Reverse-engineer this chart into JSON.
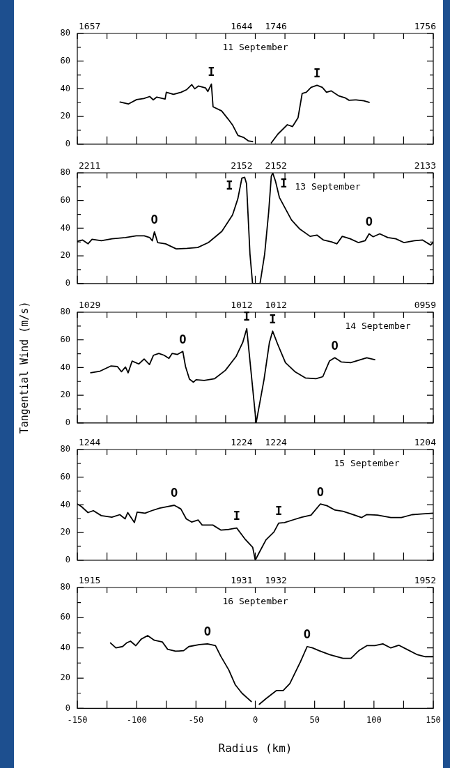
{
  "chart_data": [
    {
      "type": "line",
      "title": "11 September",
      "xlim": [
        -150,
        150
      ],
      "xticks": [
        {
          "value": -150,
          "label": null
        },
        {
          "value": -125,
          "label": null
        },
        {
          "value": -100,
          "label": null
        },
        {
          "value": -75,
          "label": null
        },
        {
          "value": -50,
          "label": null
        },
        {
          "value": -25,
          "label": null
        },
        {
          "value": 0,
          "label": null
        },
        {
          "value": 25,
          "label": null
        },
        {
          "value": 50,
          "label": null
        },
        {
          "value": 75,
          "label": null
        },
        {
          "value": 100,
          "label": null
        },
        {
          "value": 125,
          "label": null
        },
        {
          "value": 150,
          "label": null
        }
      ],
      "ylim": [
        0,
        80
      ],
      "yticks": [
        0,
        {
          "value": 10,
          "label": null
        },
        20,
        {
          "value": 30,
          "label": null
        },
        40,
        {
          "value": 50,
          "label": null
        },
        60,
        {
          "value": 70,
          "label": null
        },
        80
      ],
      "tick_labels": "y",
      "x": [
        -114,
        -107,
        -100,
        -94,
        -89,
        -86,
        -83,
        -76,
        -75,
        -69,
        -62.5,
        -58,
        -53.5,
        -51,
        -48,
        -42,
        -40,
        -37,
        -35.6,
        -28.4,
        -22.8,
        -19,
        -14.6,
        -10,
        -6,
        -2.3,
        5,
        13.5,
        19,
        27,
        31.4,
        36,
        39.5,
        43,
        47,
        52,
        56.5,
        60,
        64,
        70,
        75.6,
        79,
        85,
        91.5,
        96
      ],
      "series": [
        {
          "color": "#000000",
          "values": [
            30.4,
            29,
            32.2,
            33,
            34.4,
            32,
            34,
            32.6,
            37.5,
            36,
            37.5,
            39.3,
            43,
            40,
            42,
            40.7,
            38,
            43.4,
            27,
            24,
            18,
            13.6,
            6.3,
            4.9,
            2.4,
            1.8,
            null,
            0.9,
            7.2,
            14,
            12.7,
            19,
            36.6,
            37.5,
            41,
            42.5,
            41,
            37.5,
            38.5,
            35,
            33.5,
            31.7,
            32,
            31.3,
            30.2
          ]
        }
      ],
      "annotations": [
        "1657",
        "1644",
        "1746",
        "1756",
        {
          "text": "I",
          "x": -37,
          "y": 43.4
        },
        {
          "text": "I",
          "x": 52,
          "y": 42.5
        }
      ]
    },
    {
      "type": "line",
      "title": "13 September",
      "xlim": [
        -150,
        150
      ],
      "xticks": [
        {
          "value": -150,
          "label": null
        },
        {
          "value": -125,
          "label": null
        },
        {
          "value": -100,
          "label": null
        },
        {
          "value": -75,
          "label": null
        },
        {
          "value": -50,
          "label": null
        },
        {
          "value": -25,
          "label": null
        },
        {
          "value": 0,
          "label": null
        },
        {
          "value": 25,
          "label": null
        },
        {
          "value": 50,
          "label": null
        },
        {
          "value": 75,
          "label": null
        },
        {
          "value": 100,
          "label": null
        },
        {
          "value": 125,
          "label": null
        },
        {
          "value": 150,
          "label": null
        }
      ],
      "ylim": [
        0,
        80
      ],
      "yticks": [
        0,
        {
          "value": 10,
          "label": null
        },
        20,
        {
          "value": 30,
          "label": null
        },
        40,
        {
          "value": 50,
          "label": null
        },
        60,
        {
          "value": 70,
          "label": null
        },
        80
      ],
      "tick_labels": "y",
      "x": [
        -150,
        -145.5,
        -141,
        -137.6,
        -129.7,
        -120.7,
        -109.4,
        -100.4,
        -93.6,
        -89,
        -86.8,
        -85,
        -82.3,
        -75.6,
        -66.6,
        -57.5,
        -48.5,
        -39.5,
        -28.2,
        -19.2,
        -14.7,
        -11.3,
        -9,
        -7.4,
        -4.5,
        -2.3,
        4,
        7.9,
        11.3,
        13.5,
        14.7,
        17,
        20.3,
        24.8,
        30.5,
        37.2,
        46.2,
        51.9,
        57.5,
        64.3,
        68.8,
        73.3,
        80,
        86.8,
        92.5,
        95.9,
        99.3,
        104.9,
        111.7,
        118.4,
        125.2,
        134.2,
        141,
        147.8,
        150
      ],
      "series": [
        {
          "color": "#000000",
          "values": [
            30.5,
            31.4,
            28.7,
            32,
            30.9,
            32.3,
            33.2,
            34.5,
            34.5,
            33.2,
            30.9,
            37.4,
            29.6,
            28.7,
            25,
            25.4,
            26,
            29.6,
            37.7,
            49.5,
            61.3,
            76.2,
            76.8,
            72.2,
            21.4,
            0,
            0,
            21.4,
            52,
            77.7,
            79.8,
            74,
            62.2,
            55,
            45.9,
            39.6,
            34.1,
            35,
            31.4,
            30.1,
            28.7,
            34.1,
            32.3,
            29.6,
            30.9,
            35.9,
            33.8,
            35.9,
            33.2,
            32.3,
            29.6,
            30.9,
            31.4,
            27.8,
            30
          ]
        }
      ],
      "annotations": [
        "2211",
        "2152",
        "2152",
        "2133",
        {
          "text": "O",
          "x": -85,
          "y": 37.4
        },
        {
          "text": "O",
          "x": 95.9,
          "y": 35.9
        },
        {
          "text": "I",
          "x": -11.3,
          "y": 76.2
        },
        {
          "text": "I",
          "x": 13.5,
          "y": 77.7
        }
      ]
    },
    {
      "type": "line",
      "title": "14 September",
      "ylabel": "Tangential Wind (m/s)",
      "xlim": [
        -150,
        150
      ],
      "xticks": [
        {
          "value": -150,
          "label": null
        },
        {
          "value": -125,
          "label": null
        },
        {
          "value": -100,
          "label": null
        },
        {
          "value": -75,
          "label": null
        },
        {
          "value": -50,
          "label": null
        },
        {
          "value": -25,
          "label": null
        },
        {
          "value": 0,
          "label": null
        },
        {
          "value": 25,
          "label": null
        },
        {
          "value": 50,
          "label": null
        },
        {
          "value": 75,
          "label": null
        },
        {
          "value": 100,
          "label": null
        },
        {
          "value": 125,
          "label": null
        },
        {
          "value": 150,
          "label": null
        }
      ],
      "ylim": [
        0,
        80
      ],
      "yticks": [
        0,
        {
          "value": 10,
          "label": null
        },
        20,
        {
          "value": 30,
          "label": null
        },
        40,
        {
          "value": 50,
          "label": null
        },
        60,
        {
          "value": 70,
          "label": null
        },
        80
      ],
      "tick_labels": "y",
      "x": [
        -138.7,
        -130.8,
        -121.8,
        -116.2,
        -112.8,
        -109.4,
        -107.2,
        -103.8,
        -98.2,
        -93.7,
        -89.2,
        -85.8,
        -81.3,
        -76.9,
        -72.8,
        -70.1,
        -65.6,
        -61.1,
        -58.8,
        -55.5,
        -52.1,
        -49.9,
        -43.1,
        -34.2,
        -25.2,
        -16.2,
        -10.6,
        -7.2,
        0.7,
        7.4,
        11.9,
        14.6,
        18.7,
        25.4,
        33.3,
        42.2,
        51.2,
        56.9,
        62.5,
        67,
        72.6,
        80.4,
        87.2,
        93.9,
        100.7
      ],
      "series": [
        {
          "color": "#000000",
          "values": [
            36.2,
            37.4,
            41.1,
            40.7,
            37,
            40.4,
            36.2,
            44.7,
            42.6,
            46.2,
            42.2,
            48.9,
            50.2,
            48.9,
            46.6,
            50.2,
            49.5,
            51.7,
            40.7,
            31.6,
            29.4,
            31.2,
            30.7,
            32,
            38,
            48,
            58.1,
            68.1,
            0,
            31.6,
            58.1,
            66.3,
            57.2,
            43.5,
            37.1,
            32.5,
            32,
            33.4,
            44.7,
            47.1,
            44,
            43.5,
            45.3,
            47.1,
            45.7
          ]
        }
      ],
      "annotations": [
        "1029",
        "1012",
        "1012",
        "0959",
        {
          "text": "O",
          "x": -61.1,
          "y": 51.7
        },
        {
          "text": "O",
          "x": 67,
          "y": 47.1
        },
        {
          "text": "I",
          "x": -7.2,
          "y": 68.1
        },
        {
          "text": "I",
          "x": 14.6,
          "y": 66.3
        }
      ]
    },
    {
      "type": "line",
      "title": "15 September",
      "xlim": [
        -150,
        150
      ],
      "xticks": [
        {
          "value": -150,
          "label": null
        },
        {
          "value": -125,
          "label": null
        },
        {
          "value": -100,
          "label": null
        },
        {
          "value": -75,
          "label": null
        },
        {
          "value": -50,
          "label": null
        },
        {
          "value": -25,
          "label": null
        },
        {
          "value": 0,
          "label": null
        },
        {
          "value": 25,
          "label": null
        },
        {
          "value": 50,
          "label": null
        },
        {
          "value": 75,
          "label": null
        },
        {
          "value": 100,
          "label": null
        },
        {
          "value": 125,
          "label": null
        },
        {
          "value": 150,
          "label": null
        }
      ],
      "ylim": [
        0,
        80
      ],
      "yticks": [
        0,
        {
          "value": 10,
          "label": null
        },
        20,
        {
          "value": 30,
          "label": null
        },
        40,
        {
          "value": 50,
          "label": null
        },
        60,
        {
          "value": 70,
          "label": null
        },
        80
      ],
      "tick_labels": "y",
      "x": [
        -150,
        -146.6,
        -141,
        -136.5,
        -129.8,
        -120.9,
        -114.2,
        -109.7,
        -107.5,
        -101.9,
        -99.6,
        -92.9,
        -87.3,
        -80.6,
        -73.9,
        -68.3,
        -62.7,
        -58.2,
        -53.7,
        -48.1,
        -44.8,
        -35.8,
        -29.1,
        -22.4,
        -15.7,
        -9,
        -2.2,
        0,
        3.4,
        9,
        15.7,
        19.7,
        24.6,
        31.3,
        39.2,
        47,
        54.8,
        60.4,
        67.2,
        73.9,
        80.6,
        89.5,
        94,
        103,
        114.2,
        123.1,
        132.1,
        141,
        150
      ],
      "series": [
        {
          "color": "#000000",
          "values": [
            40.6,
            38.8,
            34.4,
            35.8,
            32.2,
            31.1,
            32.9,
            29.9,
            34.4,
            27.2,
            34.7,
            34,
            35.8,
            37.6,
            38.8,
            39.7,
            37,
            29.9,
            27.6,
            29,
            25.4,
            25.4,
            21.8,
            22.2,
            23.3,
            15.6,
            9.3,
            0,
            5.7,
            14.7,
            20.4,
            26.8,
            27.2,
            29,
            31.1,
            32.6,
            40.6,
            39.4,
            36.2,
            35.3,
            33.5,
            30.8,
            33,
            32.6,
            30.8,
            30.8,
            32.9,
            33.5,
            34
          ]
        }
      ],
      "annotations": [
        "1244",
        "1224",
        "1224",
        "1204",
        {
          "text": "O",
          "x": -68.3,
          "y": 39.7
        },
        {
          "text": "O",
          "x": 54.8,
          "y": 40.6
        },
        {
          "text": "I",
          "x": -15.7,
          "y": 23.3
        },
        {
          "text": "I",
          "x": 19.7,
          "y": 26.8
        }
      ]
    },
    {
      "type": "line",
      "title": "16 September",
      "xlabel": "Radius (km)",
      "xlim": [
        -150,
        150
      ],
      "xticks": [
        -150,
        {
          "value": -125,
          "label": null
        },
        -100,
        {
          "value": -75,
          "label": null
        },
        -50,
        {
          "value": -25,
          "label": null
        },
        0,
        {
          "value": 25,
          "label": null
        },
        50,
        {
          "value": 75,
          "label": null
        },
        100,
        {
          "value": 125,
          "label": null
        },
        150
      ],
      "ylim": [
        0,
        80
      ],
      "yticks": [
        0,
        {
          "value": 10,
          "label": null
        },
        20,
        {
          "value": 30,
          "label": null
        },
        40,
        {
          "value": 50,
          "label": null
        },
        60,
        {
          "value": 70,
          "label": null
        },
        80
      ],
      "x": [
        -122,
        -117.5,
        -111.9,
        -108.5,
        -105.2,
        -100.7,
        -96.2,
        -90.7,
        -85.1,
        -78.4,
        -73.9,
        -67.2,
        -60.4,
        -56,
        -47,
        -40.3,
        -33.6,
        -29.1,
        -22.4,
        -16.8,
        -11.2,
        -3.4,
        0,
        3.4,
        9,
        17.9,
        23.5,
        29.1,
        38.1,
        43.7,
        48.2,
        53.7,
        62.7,
        73.9,
        80.6,
        87.3,
        94,
        100.7,
        107.5,
        114.2,
        120.9,
        127.6,
        136.6,
        143.3,
        150
      ],
      "series": [
        {
          "color": "#000000",
          "values": [
            43.3,
            40,
            40.9,
            43.3,
            44.5,
            41.5,
            45.8,
            48.2,
            45.1,
            44,
            39.1,
            37.8,
            38.2,
            40.9,
            42.2,
            42.7,
            41.5,
            34.5,
            25.5,
            15.5,
            10,
            4.5,
            null,
            2.7,
            6.4,
            11.8,
            11.8,
            16.4,
            30.9,
            40.9,
            40,
            38.2,
            35.5,
            33.1,
            33.1,
            38.2,
            41.5,
            41.5,
            42.7,
            40,
            41.8,
            39.1,
            35.5,
            34.2,
            34.2
          ]
        }
      ],
      "annotations": [
        "1915",
        "1931",
        "1932",
        "1952",
        {
          "text": "O",
          "x": -40.3,
          "y": 42.7
        },
        {
          "text": "O",
          "x": 43.7,
          "y": 40.9
        }
      ]
    }
  ]
}
